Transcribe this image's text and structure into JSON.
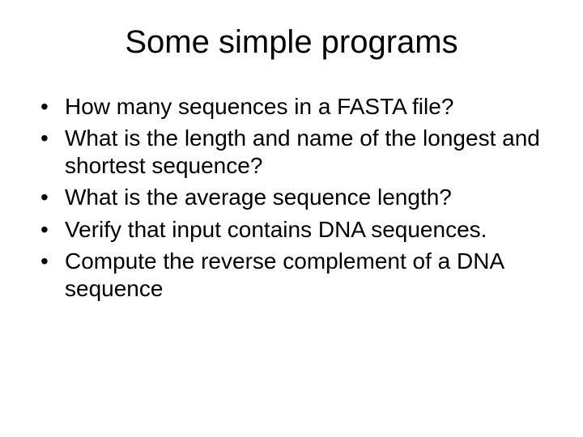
{
  "title": "Some simple programs",
  "bullets": [
    "How many sequences in a FASTA file?",
    "What is the length and name of the longest and shortest sequence?",
    "What is the average sequence length?",
    "Verify that input contains DNA sequences.",
    "Compute the reverse complement of a DNA sequence"
  ],
  "colors": {
    "background": "#ffffff",
    "text": "#000000"
  },
  "typography": {
    "title_fontsize": 40,
    "body_fontsize": 28,
    "font_family": "Arial"
  }
}
